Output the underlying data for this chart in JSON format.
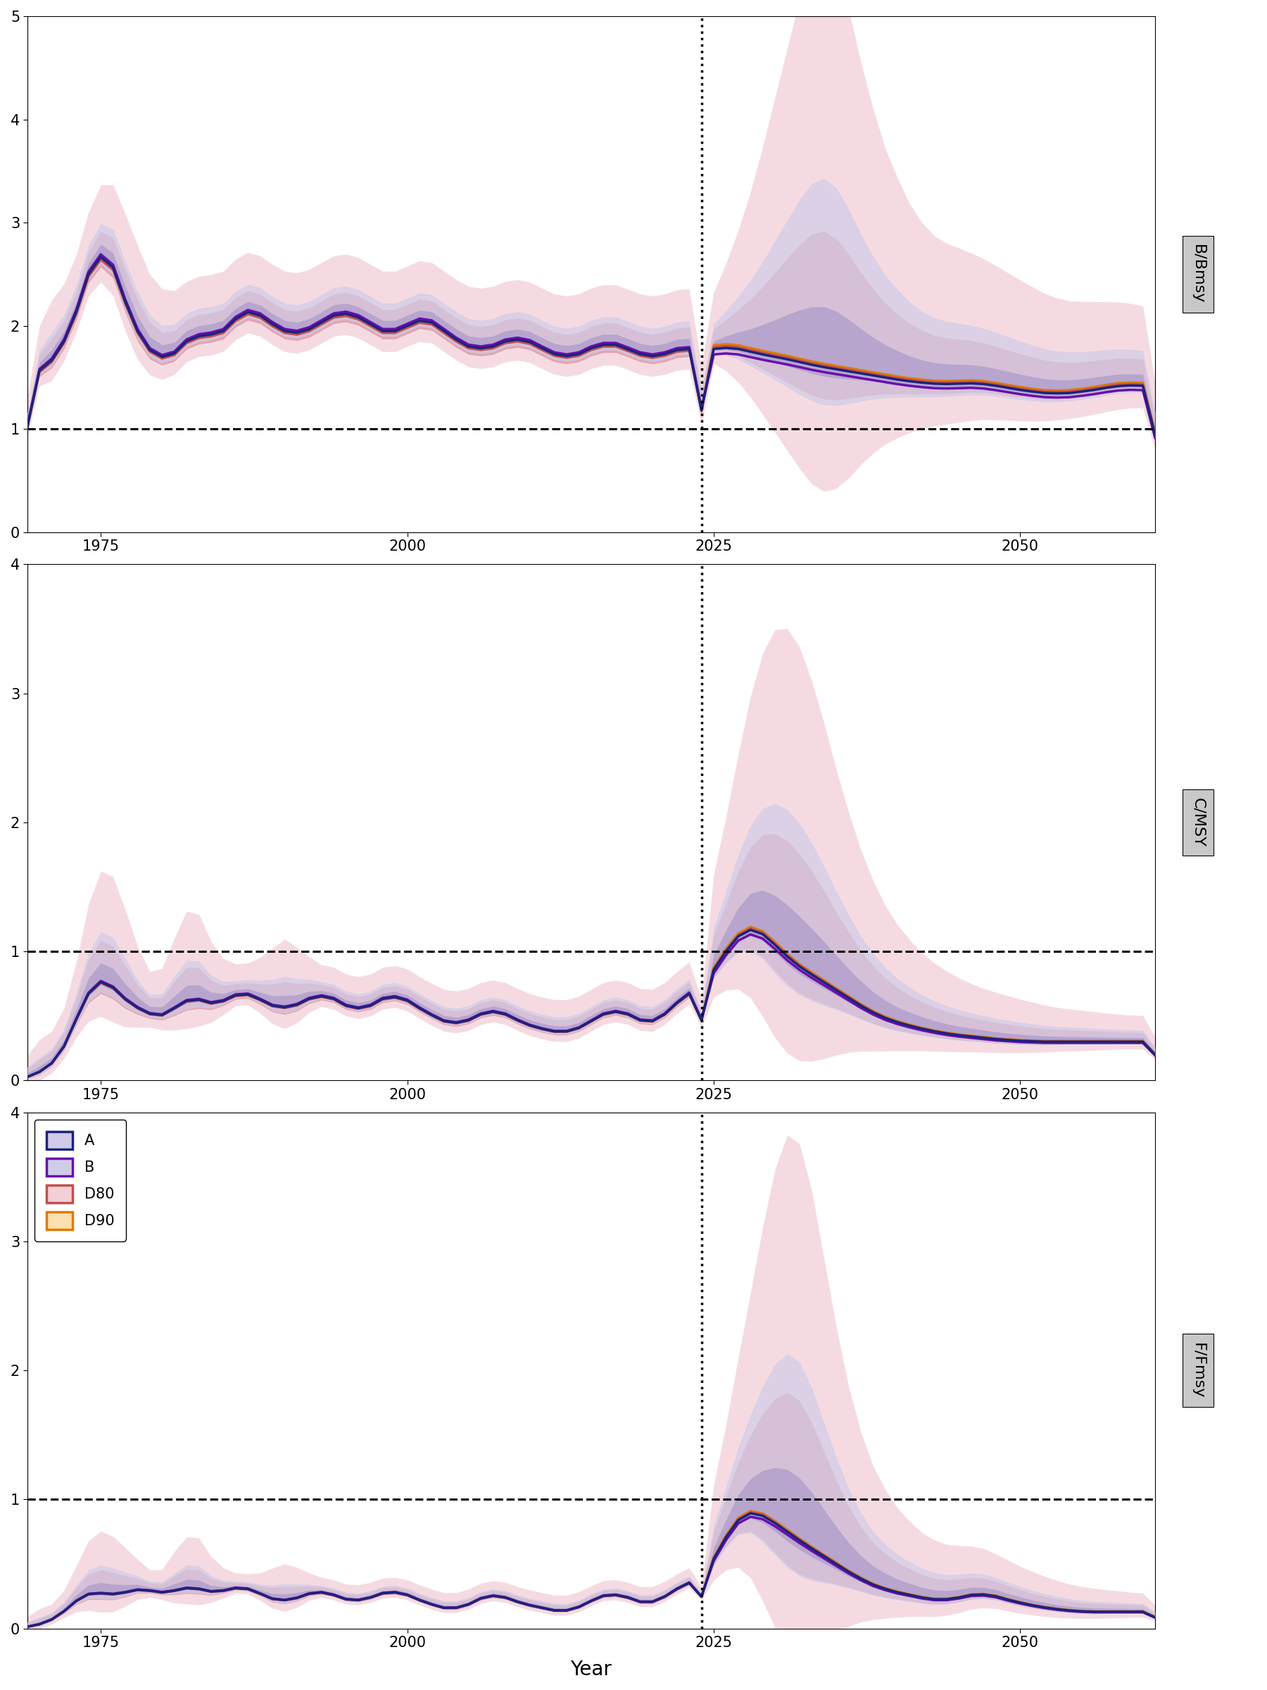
{
  "color_A_line": "#1a237e",
  "color_B_line": "#6a0dad",
  "color_D80_line": "#c0504d",
  "color_D90_line": "#e07b00",
  "fill_pink_95": "#f2d0d8",
  "fill_pink_50": "#d88090",
  "fill_blue_95": "#d0cce8",
  "fill_blue_50": "#a090c8",
  "panel_label_bg": "#c8c8c8",
  "background_color": "#ffffff",
  "hline_y": 1.0,
  "vline_x": 2024,
  "xlim": [
    1969,
    2061
  ],
  "ylim1": [
    0,
    5
  ],
  "ylim2": [
    0,
    4
  ],
  "ylim3": [
    0,
    4
  ],
  "ylabel1": "B/Bmsy",
  "ylabel2": "C/MSY",
  "ylabel3": "F/Fmsy",
  "xlabel": "Year",
  "xticks": [
    1975,
    2000,
    2025,
    2050
  ],
  "yticks1": [
    0,
    1,
    2,
    3,
    4,
    5
  ],
  "yticks2": [
    0,
    1,
    2,
    3,
    4
  ],
  "yticks3": [
    0,
    1,
    2,
    3,
    4
  ]
}
